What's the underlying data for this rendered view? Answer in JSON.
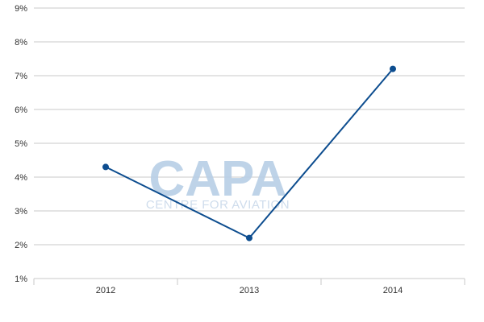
{
  "watermark": {
    "main": "CAPA",
    "sub": "CENTRE FOR AVIATION",
    "color": "#b8cfe6"
  },
  "chart_data": {
    "type": "line",
    "title": "",
    "xlabel": "",
    "ylabel": "",
    "categories": [
      "2012",
      "2013",
      "2014"
    ],
    "series": [
      {
        "values": [
          4.3,
          2.2,
          7.2
        ],
        "color": "#0d4d8f"
      }
    ],
    "ylim": [
      1,
      9
    ],
    "yticks": [
      "1%",
      "2%",
      "3%",
      "4%",
      "5%",
      "6%",
      "7%",
      "8%",
      "9%"
    ],
    "ytick_values": [
      1,
      2,
      3,
      4,
      5,
      6,
      7,
      8,
      9
    ],
    "grid": true,
    "grid_color": "#c8c8c8",
    "legend": "none"
  }
}
